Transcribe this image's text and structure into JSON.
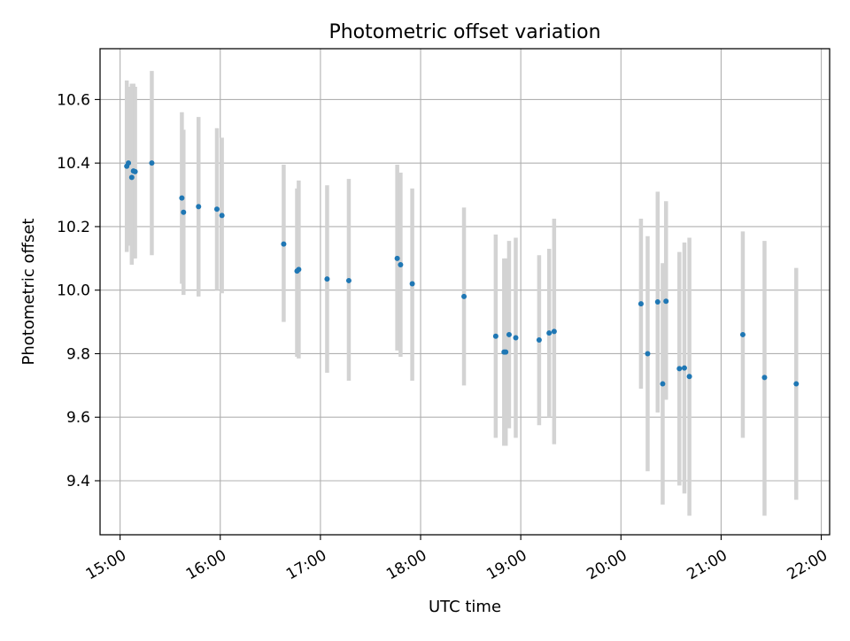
{
  "chart_data": {
    "type": "scatter",
    "title": "Photometric offset variation",
    "xlabel": "UTC time",
    "ylabel": "Photometric offset",
    "x_axis": {
      "kind": "time",
      "range": [
        "14:48",
        "22:05"
      ],
      "ticks": [
        "15:00",
        "16:00",
        "17:00",
        "18:00",
        "19:00",
        "20:00",
        "21:00",
        "22:00"
      ]
    },
    "y_axis": {
      "range": [
        9.23,
        10.76
      ],
      "ticks": [
        "9.4",
        "9.6",
        "9.8",
        "10.0",
        "10.2",
        "10.4",
        "10.6"
      ]
    },
    "grid": true,
    "marker_color": "#1f77b4",
    "errorbar_color": "#d3d3d3",
    "points": [
      {
        "time": "15:04",
        "y": 10.39,
        "low": 10.12,
        "high": 10.66
      },
      {
        "time": "15:05",
        "y": 10.4,
        "low": 10.14,
        "high": 10.64
      },
      {
        "time": "15:07",
        "y": 10.355,
        "low": 10.08,
        "high": 10.65
      },
      {
        "time": "15:08",
        "y": 10.375,
        "low": 10.1,
        "high": 10.65
      },
      {
        "time": "15:09",
        "y": 10.373,
        "low": 10.1,
        "high": 10.64
      },
      {
        "time": "15:19",
        "y": 10.4,
        "low": 10.11,
        "high": 10.69
      },
      {
        "time": "15:37",
        "y": 10.29,
        "low": 10.02,
        "high": 10.56
      },
      {
        "time": "15:38",
        "y": 10.245,
        "low": 9.985,
        "high": 10.505
      },
      {
        "time": "15:47",
        "y": 10.263,
        "low": 9.98,
        "high": 10.545
      },
      {
        "time": "15:58",
        "y": 10.255,
        "low": 10.0,
        "high": 10.51
      },
      {
        "time": "16:01",
        "y": 10.235,
        "low": 9.99,
        "high": 10.48
      },
      {
        "time": "16:38",
        "y": 10.145,
        "low": 9.9,
        "high": 10.395
      },
      {
        "time": "16:46",
        "y": 10.06,
        "low": 9.79,
        "high": 10.32
      },
      {
        "time": "16:47",
        "y": 10.065,
        "low": 9.785,
        "high": 10.345
      },
      {
        "time": "17:04",
        "y": 10.035,
        "low": 9.74,
        "high": 10.33
      },
      {
        "time": "17:17",
        "y": 10.03,
        "low": 9.715,
        "high": 10.35
      },
      {
        "time": "17:46",
        "y": 10.1,
        "low": 9.81,
        "high": 10.395
      },
      {
        "time": "17:48",
        "y": 10.08,
        "low": 9.79,
        "high": 10.37
      },
      {
        "time": "17:55",
        "y": 10.02,
        "low": 9.715,
        "high": 10.32
      },
      {
        "time": "18:26",
        "y": 9.98,
        "low": 9.7,
        "high": 10.26
      },
      {
        "time": "18:45",
        "y": 9.855,
        "low": 9.535,
        "high": 10.175
      },
      {
        "time": "18:50",
        "y": 9.805,
        "low": 9.51,
        "high": 10.1
      },
      {
        "time": "18:51",
        "y": 9.805,
        "low": 9.51,
        "high": 10.1
      },
      {
        "time": "18:53",
        "y": 9.86,
        "low": 9.565,
        "high": 10.155
      },
      {
        "time": "18:57",
        "y": 9.85,
        "low": 9.535,
        "high": 10.165
      },
      {
        "time": "19:11",
        "y": 9.843,
        "low": 9.575,
        "high": 10.11
      },
      {
        "time": "19:17",
        "y": 9.865,
        "low": 9.6,
        "high": 10.13
      },
      {
        "time": "19:20",
        "y": 9.87,
        "low": 9.515,
        "high": 10.225
      },
      {
        "time": "20:12",
        "y": 9.957,
        "low": 9.69,
        "high": 10.225
      },
      {
        "time": "20:16",
        "y": 9.8,
        "low": 9.43,
        "high": 10.17
      },
      {
        "time": "20:22",
        "y": 9.963,
        "low": 9.615,
        "high": 10.31
      },
      {
        "time": "20:25",
        "y": 9.705,
        "low": 9.325,
        "high": 10.085
      },
      {
        "time": "20:27",
        "y": 9.965,
        "low": 9.655,
        "high": 10.28
      },
      {
        "time": "20:35",
        "y": 9.753,
        "low": 9.385,
        "high": 10.12
      },
      {
        "time": "20:38",
        "y": 9.755,
        "low": 9.36,
        "high": 10.15
      },
      {
        "time": "20:41",
        "y": 9.728,
        "low": 9.29,
        "high": 10.165
      },
      {
        "time": "21:13",
        "y": 9.86,
        "low": 9.535,
        "high": 10.185
      },
      {
        "time": "21:26",
        "y": 9.725,
        "low": 9.29,
        "high": 10.155
      },
      {
        "time": "21:45",
        "y": 9.705,
        "low": 9.34,
        "high": 10.07
      }
    ]
  }
}
